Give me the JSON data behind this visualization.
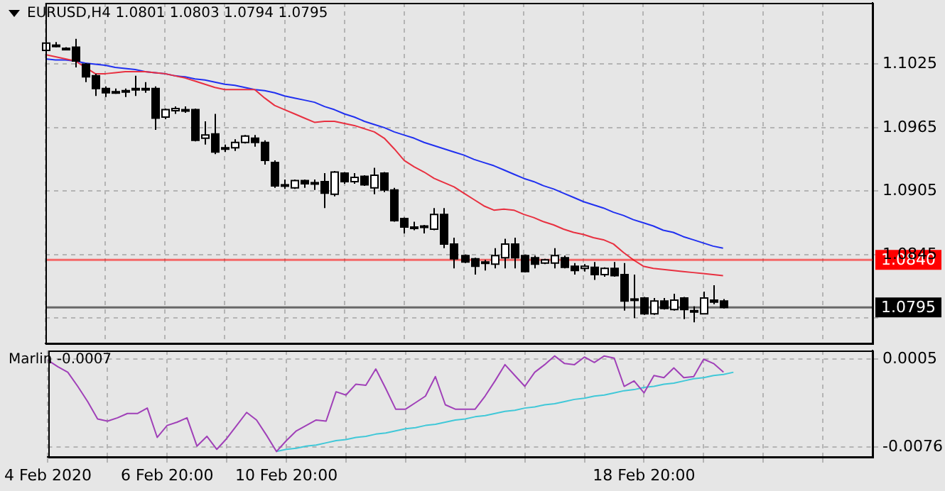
{
  "chart_data": [
    {
      "type": "candlestick",
      "title": "EURUSD,H4 1.0801 1.0803 1.0794 1.0795",
      "categories": [
        null,
        null,
        null,
        null,
        null,
        null,
        null,
        null,
        null,
        null,
        null,
        null,
        null,
        null,
        null,
        null,
        null,
        null,
        null,
        null,
        null,
        null,
        null,
        null,
        null,
        null,
        null,
        null,
        null,
        null,
        null,
        null,
        null,
        null,
        null,
        null,
        null,
        null,
        null,
        null,
        null,
        null,
        null,
        null,
        null,
        null,
        null,
        null,
        null,
        null,
        null,
        null,
        null,
        null,
        null,
        null,
        null,
        null,
        null,
        null,
        null,
        null,
        null,
        null,
        null,
        null,
        null,
        null,
        null,
        null,
        null,
        null,
        null,
        null,
        null,
        null,
        null,
        null,
        null,
        null,
        null,
        null,
        null,
        null
      ],
      "ohlc": [
        [
          1.1038,
          1.1046,
          1.1037,
          1.1045
        ],
        [
          1.1043,
          1.1046,
          1.1041,
          1.1042
        ],
        [
          1.104,
          1.1041,
          1.1038,
          1.104
        ],
        [
          1.1041,
          1.1049,
          1.1022,
          1.1028
        ],
        [
          1.1025,
          1.1026,
          1.1008,
          1.1013
        ],
        [
          1.1014,
          1.1016,
          1.0995,
          1.1002
        ],
        [
          1.1002,
          1.1004,
          1.0994,
          1.0998
        ],
        [
          1.0999,
          1.1002,
          1.0997,
          1.0999
        ],
        [
          1.1,
          1.1002,
          1.0994,
          1.1
        ],
        [
          1.1001,
          1.1014,
          1.0995,
          1.1002
        ],
        [
          1.1002,
          1.1008,
          1.0998,
          1.1002
        ],
        [
          1.1002,
          1.1004,
          1.0963,
          1.0974
        ],
        [
          1.0975,
          1.0983,
          1.0973,
          1.0982
        ],
        [
          1.0981,
          1.0985,
          1.0978,
          1.0983
        ],
        [
          1.0982,
          1.0985,
          1.0979,
          1.0982
        ],
        [
          1.0982,
          1.0983,
          1.0952,
          1.0953
        ],
        [
          1.0955,
          1.0971,
          1.0949,
          1.0958
        ],
        [
          1.0959,
          1.0978,
          1.094,
          1.0942
        ],
        [
          1.0946,
          1.0949,
          1.0942,
          1.0946
        ],
        [
          1.0946,
          1.0954,
          1.0943,
          1.0951
        ],
        [
          1.0951,
          1.0958,
          1.095,
          1.0957
        ],
        [
          1.0955,
          1.0958,
          1.0947,
          1.0951
        ],
        [
          1.0951,
          1.0953,
          1.093,
          1.0934
        ],
        [
          1.0932,
          1.0934,
          1.0908,
          1.091
        ],
        [
          1.0911,
          1.0916,
          1.0907,
          1.0911
        ],
        [
          1.0908,
          1.0916,
          1.0907,
          1.0915
        ],
        [
          1.0915,
          1.0916,
          1.0908,
          1.0912
        ],
        [
          1.0912,
          1.0916,
          1.0906,
          1.0913
        ],
        [
          1.0914,
          1.0922,
          1.0889,
          1.0903
        ],
        [
          1.0902,
          1.0924,
          1.09,
          1.0923
        ],
        [
          1.0922,
          1.0923,
          1.0912,
          1.0914
        ],
        [
          1.0914,
          1.0922,
          1.0912,
          1.0918
        ],
        [
          1.0919,
          1.092,
          1.091,
          1.0911
        ],
        [
          1.0908,
          1.0927,
          1.0902,
          1.092
        ],
        [
          1.0922,
          1.0923,
          1.0904,
          1.0906
        ],
        [
          1.0906,
          1.0908,
          1.0876,
          1.0877
        ],
        [
          1.0879,
          1.088,
          1.0865,
          1.0871
        ],
        [
          1.0871,
          1.0876,
          1.0868,
          1.0871
        ],
        [
          1.0872,
          1.0873,
          1.0865,
          1.0872
        ],
        [
          1.0869,
          1.0889,
          1.0868,
          1.0883
        ],
        [
          1.0883,
          1.0889,
          1.0851,
          1.0855
        ],
        [
          1.0855,
          1.0861,
          1.0832,
          1.0841
        ],
        [
          1.0844,
          1.0845,
          1.0837,
          1.0838
        ],
        [
          1.0841,
          1.0842,
          1.0826,
          1.0834
        ],
        [
          1.0838,
          1.084,
          1.083,
          1.0838
        ],
        [
          1.0836,
          1.0851,
          1.0832,
          1.0844
        ],
        [
          1.0842,
          1.086,
          1.0832,
          1.0855
        ],
        [
          1.0855,
          1.0861,
          1.0832,
          1.0842
        ],
        [
          1.0844,
          1.0845,
          1.0828,
          1.0829
        ],
        [
          1.0842,
          1.0844,
          1.0832,
          1.0836
        ],
        [
          1.0837,
          1.0841,
          1.0836,
          1.084
        ],
        [
          1.0837,
          1.0851,
          1.0832,
          1.0844
        ],
        [
          1.0842,
          1.0844,
          1.0832,
          1.0833
        ],
        [
          1.0834,
          1.0837,
          1.0826,
          1.083
        ],
        [
          1.0832,
          1.0836,
          1.0829,
          1.0834
        ],
        [
          1.0833,
          1.0838,
          1.0821,
          1.0826
        ],
        [
          1.0826,
          1.0833,
          1.0824,
          1.0832
        ],
        [
          1.0832,
          1.0838,
          1.0824,
          1.0825
        ],
        [
          1.0826,
          1.0837,
          1.0792,
          1.0801
        ],
        [
          1.0802,
          1.0826,
          1.0785,
          1.0803
        ],
        [
          1.0804,
          1.0805,
          1.0788,
          1.0789
        ],
        [
          1.0789,
          1.0804,
          1.0788,
          1.0801
        ],
        [
          1.0801,
          1.0804,
          1.0793,
          1.0794
        ],
        [
          1.0793,
          1.0808,
          1.0792,
          1.0802
        ],
        [
          1.0804,
          1.0805,
          1.0784,
          1.0793
        ],
        [
          1.0792,
          1.0796,
          1.0781,
          1.0792
        ],
        [
          1.0789,
          1.081,
          1.0789,
          1.0804
        ],
        [
          1.0802,
          1.0816,
          1.0798,
          1.08
        ],
        [
          1.0801,
          1.0803,
          1.0794,
          1.0795
        ],
        null,
        null,
        null,
        null,
        null,
        null,
        null,
        null,
        null,
        null,
        null,
        null,
        null,
        null,
        null
      ],
      "series": [
        {
          "type": "line",
          "color": "#e83040",
          "values": [
            1.1034,
            1.1032,
            1.103,
            1.1028,
            1.1022,
            1.1016,
            1.1016,
            1.1017,
            1.1018,
            1.1018,
            1.1018,
            1.1017,
            1.1016,
            1.1014,
            1.1012,
            1.1009,
            1.1006,
            1.1003,
            1.1001,
            1.1001,
            1.1001,
            1.1001,
            1.0993,
            1.0986,
            1.0982,
            1.0978,
            1.0974,
            1.097,
            1.0971,
            1.0971,
            1.0969,
            1.0967,
            1.0964,
            1.0961,
            1.0955,
            1.0945,
            1.0934,
            1.0928,
            1.0923,
            1.0917,
            1.0913,
            1.0909,
            1.0903,
            1.0897,
            1.0891,
            1.0887,
            1.0888,
            1.0887,
            1.0883,
            1.088,
            1.0876,
            1.0873,
            1.0869,
            1.0866,
            1.0864,
            1.0861,
            1.0859,
            1.0855,
            1.0847,
            1.084,
            1.0834,
            1.0832,
            1.0831,
            1.083,
            1.0829,
            1.0828,
            1.0827,
            1.0826,
            1.0825,
            null,
            null,
            null,
            null,
            null,
            null,
            null,
            null,
            null,
            null,
            null,
            null,
            null,
            null,
            null
          ]
        },
        {
          "type": "line",
          "color": "#2030f0",
          "values": [
            1.103,
            1.1029,
            1.1029,
            1.1028,
            1.1026,
            1.1025,
            1.1024,
            1.1022,
            1.1021,
            1.102,
            1.1018,
            1.1017,
            1.1016,
            1.1014,
            1.1013,
            1.1011,
            1.101,
            1.1008,
            1.1006,
            1.1005,
            1.1003,
            1.1001,
            1.1,
            1.0998,
            1.0995,
            1.0993,
            1.0991,
            1.0989,
            1.0985,
            1.0982,
            1.0978,
            1.0975,
            1.0971,
            1.0968,
            1.0965,
            1.0961,
            1.0958,
            1.0955,
            1.0951,
            1.0948,
            1.0945,
            1.0942,
            1.0939,
            1.0935,
            1.0932,
            1.0929,
            1.0925,
            1.0921,
            1.0917,
            1.0914,
            1.091,
            1.0907,
            1.0903,
            1.0899,
            1.0895,
            1.0892,
            1.0889,
            1.0885,
            1.0882,
            1.0878,
            1.0875,
            1.0872,
            1.0868,
            1.0866,
            1.0862,
            1.0859,
            1.0856,
            1.0853,
            1.0851,
            null,
            null,
            null,
            null,
            null,
            null,
            null,
            null,
            null,
            null,
            null,
            null,
            null,
            null,
            null
          ]
        }
      ],
      "ylim": [
        1.0761,
        1.1083
      ],
      "yticks": [
        1.1025,
        1.0965,
        1.0905,
        1.0845,
        {
          "value": 1.0785,
          "label": null
        }
      ],
      "tick_labels": "y",
      "grid": true,
      "ref_lines": [
        {
          "axis": "y",
          "value": 1.084,
          "label": "1.0840",
          "color": "#ff0000"
        },
        {
          "axis": "y",
          "value": 1.0795,
          "label": "1.0795",
          "color": "#000000"
        }
      ]
    },
    {
      "type": "line",
      "title": "Marlin -0.0007",
      "categories": [
        "4 Feb 2020",
        null,
        null,
        null,
        null,
        null,
        null,
        null,
        null,
        null,
        null,
        null,
        "6 Feb 20:00",
        null,
        null,
        null,
        null,
        null,
        null,
        null,
        null,
        null,
        null,
        null,
        "10 Feb 20:00",
        null,
        null,
        null,
        null,
        null,
        null,
        null,
        null,
        null,
        null,
        null,
        null,
        null,
        null,
        null,
        null,
        null,
        null,
        null,
        null,
        null,
        null,
        null,
        null,
        null,
        null,
        null,
        null,
        null,
        null,
        null,
        null,
        null,
        null,
        null,
        "18 Feb 20:00",
        null,
        null,
        null,
        null,
        null,
        null,
        null,
        null,
        null,
        null,
        null,
        null,
        null,
        null,
        null,
        null,
        null,
        null,
        null,
        null,
        null,
        null,
        null
      ],
      "series": [
        {
          "color": "#a040b8",
          "values": [
            0.0004,
            -0.0002,
            -0.0007,
            -0.002,
            -0.0034,
            -0.005,
            -0.0052,
            -0.0049,
            -0.0045,
            -0.0045,
            -0.004,
            -0.0067,
            -0.0056,
            -0.0053,
            -0.0049,
            -0.0075,
            -0.0066,
            -0.0078,
            -0.0068,
            -0.0056,
            -0.0044,
            -0.0051,
            -0.0065,
            -0.008,
            -0.007,
            -0.0061,
            -0.0056,
            -0.0051,
            -0.0052,
            -0.0025,
            -0.0028,
            -0.0018,
            -0.0019,
            -0.0004,
            -0.0022,
            -0.0041,
            -0.0041,
            -0.0035,
            -0.0029,
            -0.0011,
            -0.0037,
            -0.0041,
            -0.0041,
            -0.0041,
            -0.0029,
            -0.0015,
            0.0,
            -0.001,
            -0.002,
            -0.0007,
            0.0,
            0.0008,
            0.0001,
            0.0,
            0.0007,
            0.0002,
            0.0008,
            0.0006,
            -0.002,
            -0.0015,
            -0.0026,
            -0.001,
            -0.0012,
            -0.0003,
            -0.0012,
            -0.0011,
            0.0005,
            0.0001,
            -0.0007,
            null,
            null,
            null,
            null,
            null,
            null,
            null,
            null,
            null,
            null,
            null,
            null,
            null,
            null,
            null
          ]
        },
        {
          "type": "line",
          "color": "#40c8d8",
          "values": [
            null,
            null,
            null,
            null,
            null,
            null,
            null,
            null,
            null,
            null,
            null,
            null,
            null,
            null,
            null,
            null,
            null,
            null,
            null,
            null,
            null,
            null,
            null,
            -0.008,
            -0.0078,
            -0.0077,
            -0.0075,
            -0.0074,
            -0.0072,
            -0.007,
            -0.0069,
            -0.0067,
            -0.0066,
            -0.0064,
            -0.0063,
            -0.0061,
            -0.0059,
            -0.0058,
            -0.0056,
            -0.0055,
            -0.0053,
            -0.0051,
            -0.005,
            -0.0048,
            -0.0047,
            -0.0045,
            -0.0043,
            -0.0042,
            -0.004,
            -0.0039,
            -0.0037,
            -0.0036,
            -0.0034,
            -0.0032,
            -0.0031,
            -0.0029,
            -0.0028,
            -0.0026,
            -0.0024,
            -0.0023,
            -0.0021,
            -0.002,
            -0.0018,
            -0.0017,
            -0.0015,
            -0.0013,
            -0.0012,
            -0.001,
            -0.0009,
            -0.0007,
            null,
            null,
            null,
            null,
            null,
            null,
            null,
            null,
            null,
            null,
            null,
            null,
            null,
            null
          ]
        }
      ],
      "ylim": [
        -0.0085,
        0.0013
      ],
      "yticks": [
        0.0005,
        -0.0076
      ],
      "grid": true
    }
  ]
}
